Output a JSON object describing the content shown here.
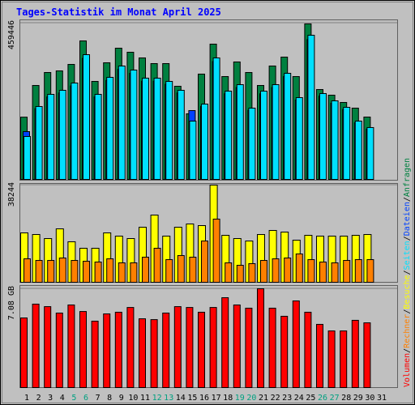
{
  "chart_data": [
    {
      "type": "bar",
      "title": "Tages-Statistik im Monat April 2025",
      "legend_separator": "/",
      "ylim": [
        0,
        459446
      ],
      "yticks": [
        459446
      ],
      "series": [
        {
          "name": "Anfragen",
          "color": "#008040",
          "values": [
            183000,
            276100,
            314200,
            319000,
            338000,
            407100,
            288000,
            342800,
            385700,
            373800,
            357100,
            340400,
            340400,
            273800,
            192800,
            309500,
            397600,
            302300,
            345200,
            314200,
            276100,
            333300,
            359500,
            302300,
            457100,
            264200,
            247600,
            226200,
            209500,
            183300,
            null
          ]
        },
        {
          "name": "Dateien",
          "color": "#0040ff",
          "values": [
            140500,
            207900,
            242500,
            254000,
            274800,
            355600,
            242500,
            291000,
            323300,
            311800,
            288700,
            288700,
            279500,
            254000,
            202300,
            214800,
            346400,
            251700,
            270100,
            203200,
            251700,
            270100,
            302500,
            233200,
            411000,
            244700,
            224000,
            205500,
            166300,
            147800,
            null
          ]
        },
        {
          "name": "Seiten",
          "color": "#00e0ff",
          "values": [
            126200,
            214300,
            250000,
            261900,
            283300,
            366600,
            250000,
            300000,
            333300,
            321400,
            297600,
            297600,
            288100,
            261900,
            171400,
            221400,
            357100,
            259500,
            278500,
            209500,
            259500,
            278500,
            311900,
            240400,
            423700,
            252300,
            230900,
            211900,
            171400,
            152400,
            null
          ]
        }
      ]
    },
    {
      "type": "bar",
      "ylim": [
        0,
        38244
      ],
      "yticks": [
        38244
      ],
      "series": [
        {
          "name": "Besuche",
          "color": "#ffff00",
          "values": [
            19440,
            18800,
            17210,
            21030,
            15940,
            13390,
            13390,
            19440,
            18170,
            17210,
            21670,
            26450,
            18170,
            21670,
            22950,
            22310,
            38244,
            18480,
            17210,
            16250,
            18800,
            20400,
            19760,
            16570,
            18480,
            18170,
            18170,
            18170,
            18480,
            18800,
            null
          ]
        },
        {
          "name": "Rechner",
          "color": "#ff8000",
          "values": [
            9240,
            8600,
            8600,
            9560,
            8600,
            8290,
            7970,
            9240,
            7650,
            7650,
            9880,
            13390,
            8920,
            10520,
            9880,
            16250,
            24860,
            7650,
            6690,
            7330,
            8600,
            9240,
            9560,
            11150,
            8920,
            7970,
            7650,
            8600,
            8920,
            8920,
            null
          ]
        }
      ]
    },
    {
      "type": "bar",
      "ylim": [
        0,
        7.08
      ],
      "yticks": [
        {
          "value": 7.08,
          "label": "7.08 GB"
        }
      ],
      "categories": [
        "1",
        "2",
        "3",
        "4",
        "5",
        "6",
        "7",
        "8",
        "9",
        "10",
        "11",
        "12",
        "13",
        "14",
        "15",
        "16",
        "17",
        "18",
        "19",
        "20",
        "21",
        "22",
        "23",
        "24",
        "25",
        "26",
        "27",
        "28",
        "29",
        "30",
        "31"
      ],
      "category_colors": [
        "#000000",
        "#000000",
        "#000000",
        "#000000",
        "#00a080",
        "#00a080",
        "#000000",
        "#000000",
        "#000000",
        "#000000",
        "#000000",
        "#00a080",
        "#00a080",
        "#000000",
        "#000000",
        "#000000",
        "#000000",
        "#000000",
        "#00a080",
        "#00a080",
        "#000000",
        "#000000",
        "#000000",
        "#000000",
        "#000000",
        "#00a080",
        "#00a080",
        "#000000",
        "#000000",
        "#000000",
        "#000000"
      ],
      "series": [
        {
          "name": "Volumen",
          "color": "#ff0000",
          "values": [
            4.99,
            5.98,
            5.8,
            5.34,
            5.92,
            5.45,
            4.76,
            5.28,
            5.4,
            5.74,
            4.93,
            4.87,
            5.34,
            5.8,
            5.74,
            5.4,
            5.74,
            6.44,
            5.92,
            5.69,
            7.08,
            5.69,
            5.11,
            6.21,
            5.4,
            4.53,
            4.06,
            4.06,
            4.82,
            4.64,
            null
          ]
        }
      ]
    }
  ]
}
